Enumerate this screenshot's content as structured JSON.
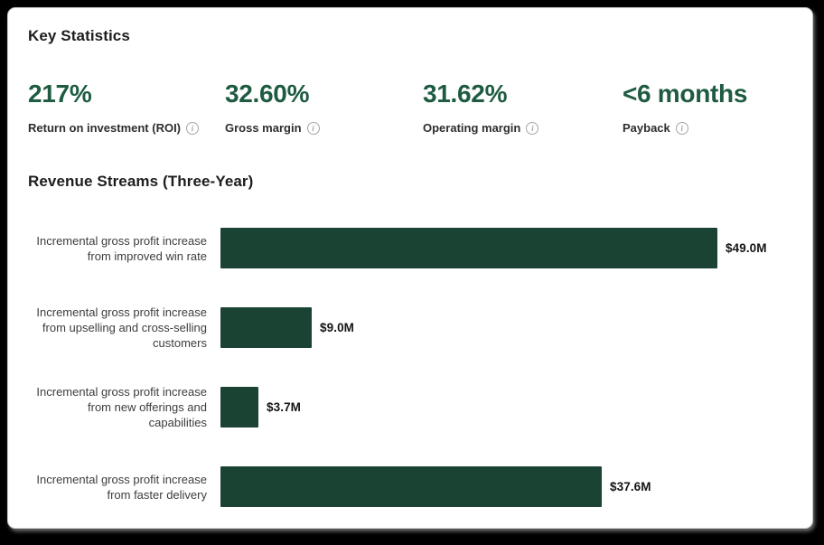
{
  "card": {
    "key_stats_title": "Key Statistics",
    "stats": [
      {
        "value": "217%",
        "label": "Return on investment (ROI)"
      },
      {
        "value": "32.60%",
        "label": "Gross margin"
      },
      {
        "value": "31.62%",
        "label": "Operating margin"
      },
      {
        "value": "<6 months",
        "label": "Payback"
      }
    ],
    "info_icon_glyph": "i"
  },
  "chart_data": {
    "type": "bar",
    "orientation": "horizontal",
    "title": "Revenue Streams (Three-Year)",
    "categories": [
      "Incremental gross profit increase from improved win rate",
      "Incremental gross profit increase from upselling and cross-selling customers",
      "Incremental gross profit increase from new offerings and capabilities",
      "Incremental gross profit increase from faster delivery"
    ],
    "values": [
      49.0,
      9.0,
      3.7,
      37.6
    ],
    "value_labels": [
      "$49.0M",
      "$9.0M",
      "$3.7M",
      "$37.6M"
    ],
    "xlim": [
      0,
      49.0
    ],
    "grid": false,
    "legend": false,
    "bar_color": "#1b4334"
  },
  "colors": {
    "page_bg": "#000000",
    "card_bg": "#ffffff",
    "stat_value_green": "#1e5b41",
    "bar_green": "#1b4334",
    "heading_text": "#1d1d1d",
    "bar_label_text": "#3d3d3d",
    "info_icon_gray": "#a6a6a6"
  }
}
